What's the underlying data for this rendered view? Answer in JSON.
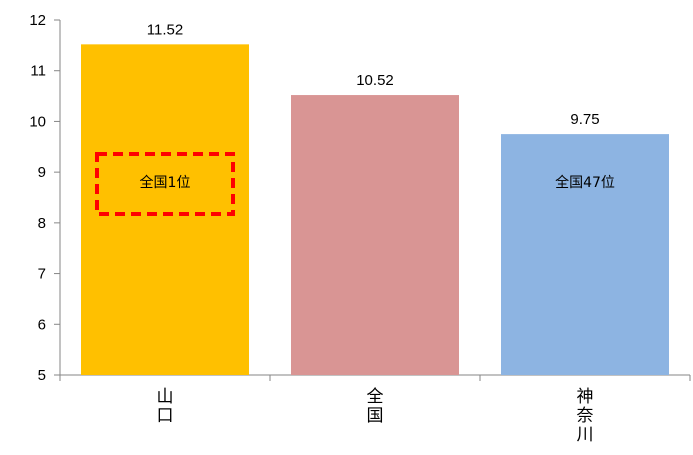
{
  "chart_data": {
    "type": "bar",
    "categories": [
      "山口",
      "全国",
      "神奈川"
    ],
    "values": [
      11.52,
      10.52,
      9.75
    ],
    "value_labels": [
      "11.52",
      "10.52",
      "9.75"
    ],
    "ylim": [
      5,
      12
    ],
    "yticks": [
      "5",
      "6",
      "7",
      "8",
      "9",
      "10",
      "11",
      "12"
    ],
    "bar_colors": [
      "#ffc000",
      "#d99594",
      "#8db4e2"
    ],
    "annotations": [
      {
        "category": "山口",
        "text": "全国1位",
        "boxed": true,
        "box_color": "#ff0000"
      },
      {
        "category": "神奈川",
        "text": "全国47位",
        "boxed": false
      }
    ],
    "grid": false,
    "legend": "none"
  }
}
